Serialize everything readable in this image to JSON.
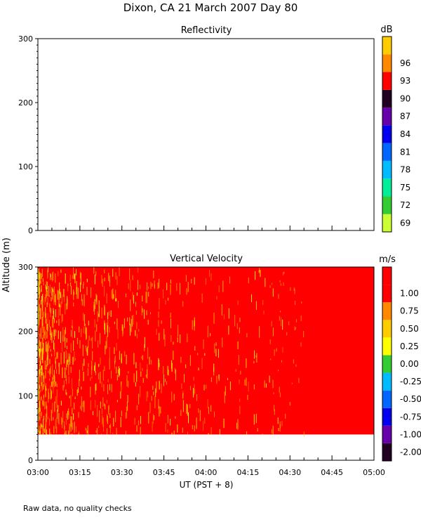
{
  "page": {
    "title": "Dixon, CA 21 March 2007  Day  80",
    "footnote": "Raw data, no quality checks",
    "y_axis_label": "Altitude (m)",
    "x_axis_label": "UT  (PST + 8)"
  },
  "chart_data": [
    {
      "type": "heatmap",
      "title": "Reflectivity",
      "ylim": [
        0,
        300
      ],
      "yticks": [
        0,
        100,
        200,
        300
      ],
      "x_ticks": [
        "03:00",
        "03:15",
        "03:30",
        "03:45",
        "04:00",
        "04:15",
        "04:30",
        "04:45",
        "05:00"
      ],
      "xlim": [
        "03:00",
        "05:00"
      ],
      "colorbar": {
        "unit": "dB",
        "labels": [
          69,
          72,
          75,
          78,
          81,
          84,
          87,
          90,
          93,
          96
        ],
        "colors": [
          "#ccff33",
          "#33cc33",
          "#00ee99",
          "#00bbff",
          "#0066ff",
          "#0000ee",
          "#6600aa",
          "#220022",
          "#ff0000",
          "#ff8800",
          "#ffcc00"
        ]
      },
      "data_coverage": "none"
    },
    {
      "type": "heatmap",
      "title": "Vertical Velocity",
      "ylim": [
        0,
        300
      ],
      "yticks": [
        0,
        100,
        200,
        300
      ],
      "x_ticks": [
        "03:00",
        "03:15",
        "03:30",
        "03:45",
        "04:00",
        "04:15",
        "04:30",
        "04:45",
        "05:00"
      ],
      "xlim": [
        "03:00",
        "05:00"
      ],
      "colorbar": {
        "unit": "m/s",
        "labels": [
          "-2.00",
          "-1.00",
          "-0.75",
          "-0.50",
          "-0.25",
          "0.00",
          "0.25",
          "0.50",
          "0.75",
          "1.00"
        ],
        "colors": [
          "#220022",
          "#6600aa",
          "#0000ee",
          "#0066ff",
          "#00bbff",
          "#33cc33",
          "#ffff00",
          "#ffcc00",
          "#ff8800",
          "#ff0000",
          "#ff0000"
        ]
      },
      "data_extent": {
        "altitude_m": [
          40,
          300
        ],
        "time": [
          "03:00",
          "05:00"
        ]
      },
      "dominant_value_color": "#ff0000",
      "speckle_colors": [
        "#ffff00",
        "#ffcc00",
        "#ff8800"
      ],
      "speckle_fade_end": "04:30"
    }
  ]
}
